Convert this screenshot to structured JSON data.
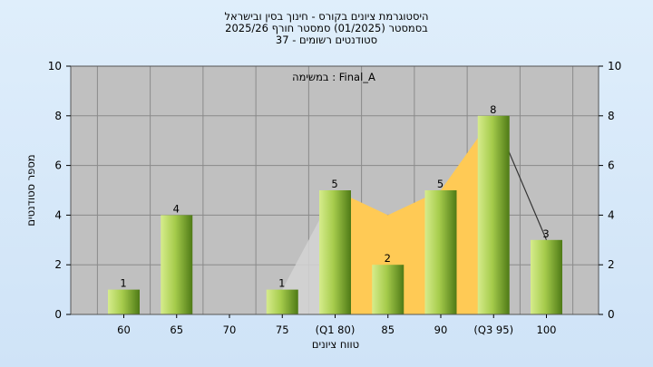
{
  "title_lines": [
    "היסטוגרמת ציונים בקורס - חינוך בסין ובישראל",
    "בסמסטר  (01/2025)  סמסטר חורף 2025/26",
    "סטודנטים רשומים - 37"
  ],
  "colors": {
    "plot_bg": "#c0c0c0",
    "bar_light": "#d6ec8c",
    "bar_dark": "#4e7a16",
    "area_orange": "#ffca55",
    "area_gray": "#d3d3d3"
  },
  "chart_data": {
    "type": "bar",
    "annotation": "במשימה : Final_A",
    "xlabel": "טווח ציונים",
    "ylabel": "מספר סטודנטים",
    "categories": [
      "60",
      "65",
      "70",
      "75",
      "(Q1 80)",
      "85",
      "90",
      "(Q3 95)",
      "100"
    ],
    "values": [
      1,
      4,
      0,
      1,
      5,
      2,
      5,
      8,
      3
    ],
    "value_labels": [
      "1",
      "4",
      "",
      "1",
      "5",
      "2",
      "5",
      "8",
      "3"
    ],
    "ylim": [
      0,
      10
    ],
    "yticks": [
      0,
      2,
      4,
      6,
      8,
      10
    ],
    "grid": true,
    "overlay_gray_line": [
      [
        3,
        1
      ],
      [
        4,
        5
      ]
    ],
    "overlay_orange_box": [
      [
        4,
        5
      ],
      [
        5,
        4
      ],
      [
        6,
        5
      ],
      [
        7,
        8
      ]
    ],
    "overlay_dark_line": [
      [
        7,
        8
      ],
      [
        8,
        3
      ]
    ]
  }
}
